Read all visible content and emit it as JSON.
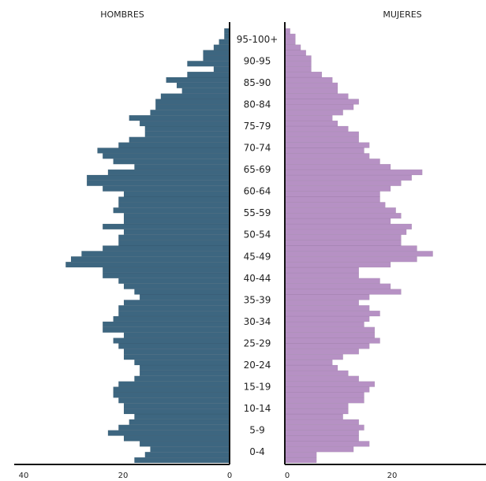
{
  "chart_data": {
    "type": "bar",
    "left_title": "HOMBRES",
    "right_title": "MUJERES",
    "age_labels": [
      "0-4",
      "5-9",
      "10-14",
      "15-19",
      "20-24",
      "25-29",
      "30-34",
      "35-39",
      "40-44",
      "45-49",
      "50-54",
      "55-59",
      "60-64",
      "65-69",
      "70-74",
      "75-79",
      "80-84",
      "85-90",
      "90-95",
      "95-100+"
    ],
    "left_ticks": [
      "40",
      "20",
      "0"
    ],
    "right_ticks": [
      "0",
      "20"
    ],
    "left_max": 40,
    "right_max": 40,
    "colors": {
      "hombres": "#3d6680",
      "mujeres": "#b691c4",
      "axis": "#111111"
    },
    "series": [
      {
        "name": "HOMBRES",
        "values": [
          18,
          16,
          15,
          17,
          20,
          23,
          21,
          19,
          18,
          20,
          20,
          21,
          22,
          22,
          21,
          18,
          17,
          17,
          18,
          20,
          20,
          21,
          22,
          20,
          24,
          24,
          22,
          21,
          21,
          20,
          17,
          18,
          20,
          21,
          24,
          24,
          31,
          30,
          28,
          24,
          21,
          21,
          20,
          24,
          20,
          20,
          22,
          21,
          21,
          20,
          24,
          27,
          27,
          23,
          18,
          22,
          24,
          25,
          21,
          19,
          16,
          16,
          17,
          19,
          15,
          14,
          14,
          13,
          9,
          10,
          12,
          8,
          3,
          8,
          5,
          5,
          3,
          2,
          1,
          1
        ]
      },
      {
        "name": "MUJERES",
        "values": [
          6,
          6,
          13,
          16,
          14,
          14,
          15,
          14,
          11,
          12,
          12,
          15,
          15,
          16,
          17,
          14,
          12,
          10,
          9,
          11,
          14,
          16,
          18,
          17,
          17,
          15,
          16,
          18,
          16,
          14,
          16,
          22,
          20,
          18,
          14,
          14,
          20,
          25,
          28,
          25,
          22,
          22,
          23,
          24,
          20,
          22,
          21,
          19,
          18,
          18,
          20,
          22,
          24,
          26,
          20,
          18,
          16,
          15,
          16,
          14,
          14,
          12,
          10,
          9,
          11,
          13,
          14,
          12,
          10,
          10,
          9,
          7,
          5,
          5,
          5,
          4,
          3,
          2,
          2,
          1
        ]
      }
    ]
  }
}
